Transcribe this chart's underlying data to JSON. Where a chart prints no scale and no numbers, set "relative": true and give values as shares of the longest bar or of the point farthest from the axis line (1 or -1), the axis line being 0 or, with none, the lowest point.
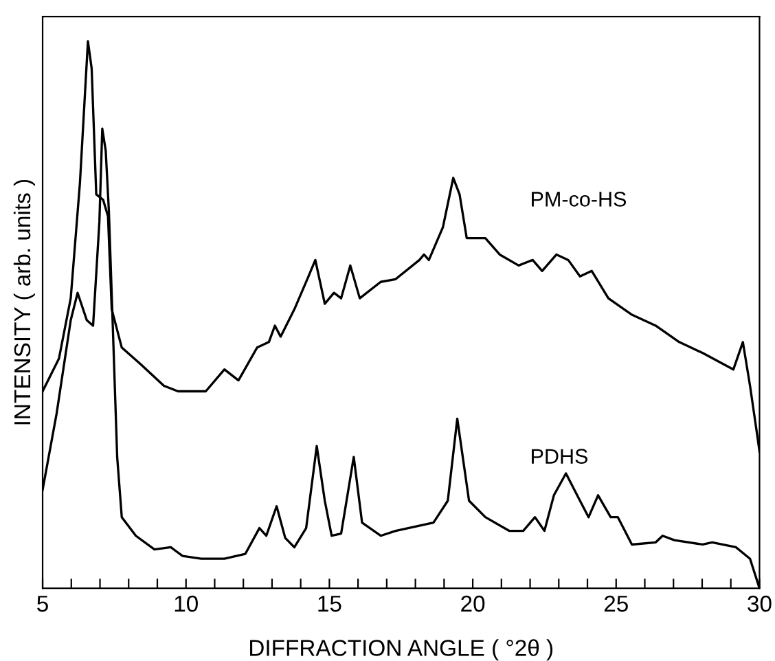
{
  "chart_data": {
    "type": "line",
    "relative": true,
    "xlabel": "DIFFRACTION ANGLE ( °2θ )",
    "ylabel": "INTENSITY ( arb. units )",
    "xlim": [
      5,
      30
    ],
    "xticks": [
      5,
      {
        "value": 6,
        "label": null
      },
      {
        "value": 7,
        "label": null
      },
      {
        "value": 8,
        "label": null
      },
      {
        "value": 9,
        "label": null
      },
      10,
      {
        "value": 11,
        "label": null
      },
      {
        "value": 12,
        "label": null
      },
      {
        "value": 13,
        "label": null
      },
      {
        "value": 14,
        "label": null
      },
      15,
      {
        "value": 16,
        "label": null
      },
      {
        "value": 17,
        "label": null
      },
      {
        "value": 18,
        "label": null
      },
      {
        "value": 19,
        "label": null
      },
      20,
      {
        "value": 21,
        "label": null
      },
      {
        "value": 22,
        "label": null
      },
      {
        "value": 23,
        "label": null
      },
      {
        "value": 24,
        "label": null
      },
      25,
      {
        "value": 26,
        "label": null
      },
      {
        "value": 27,
        "label": null
      },
      {
        "value": 28,
        "label": null
      },
      {
        "value": 29,
        "label": null
      },
      30
    ],
    "tick_labels": "x",
    "grid": false,
    "legend": false,
    "marker": "none",
    "line_style": "solid",
    "series": [
      {
        "name": "PM-co-HS",
        "color": "#000000",
        "x": [
          5.0,
          5.57,
          5.98,
          6.3,
          6.58,
          6.71,
          6.87,
          7.11,
          7.28,
          7.41,
          7.76,
          8.41,
          9.23,
          9.72,
          10.69,
          11.34,
          11.83,
          12.48,
          12.89,
          13.1,
          13.3,
          13.78,
          14.27,
          14.51,
          14.84,
          15.16,
          15.41,
          15.73,
          16.06,
          16.79,
          17.31,
          18.14,
          18.3,
          18.47,
          18.96,
          19.32,
          19.54,
          19.79,
          20.44,
          20.94,
          21.6,
          22.09,
          22.42,
          22.92,
          23.33,
          23.74,
          24.15,
          24.73,
          25.55,
          26.38,
          27.2,
          28.02,
          29.09,
          29.42,
          29.67,
          29.92,
          30.0
        ],
        "values": [
          0.36,
          0.42,
          0.53,
          0.74,
          1.0,
          0.95,
          0.72,
          0.71,
          0.68,
          0.51,
          0.44,
          0.41,
          0.37,
          0.36,
          0.36,
          0.4,
          0.38,
          0.44,
          0.45,
          0.48,
          0.46,
          0.51,
          0.57,
          0.6,
          0.52,
          0.54,
          0.53,
          0.59,
          0.53,
          0.56,
          0.565,
          0.6,
          0.61,
          0.6,
          0.66,
          0.75,
          0.72,
          0.64,
          0.64,
          0.61,
          0.59,
          0.6,
          0.58,
          0.61,
          0.6,
          0.57,
          0.58,
          0.53,
          0.5,
          0.48,
          0.45,
          0.43,
          0.4,
          0.45,
          0.37,
          0.28,
          0.25
        ]
      },
      {
        "name": "PDHS",
        "color": "#000000",
        "x": [
          5.0,
          5.49,
          5.98,
          6.22,
          6.54,
          6.76,
          6.98,
          7.08,
          7.2,
          7.31,
          7.44,
          7.6,
          7.76,
          8.25,
          8.9,
          9.47,
          9.88,
          10.53,
          11.34,
          12.07,
          12.56,
          12.8,
          13.16,
          13.46,
          13.78,
          14.19,
          14.56,
          14.84,
          15.08,
          15.41,
          15.85,
          16.14,
          16.79,
          17.31,
          18.63,
          19.13,
          19.46,
          19.87,
          20.44,
          21.27,
          21.76,
          22.17,
          22.5,
          22.83,
          23.25,
          23.74,
          24.04,
          24.37,
          24.81,
          25.06,
          25.55,
          26.38,
          26.62,
          27.03,
          28.02,
          28.35,
          29.18,
          29.67,
          30.0
        ],
        "values": [
          0.18,
          0.32,
          0.49,
          0.54,
          0.49,
          0.48,
          0.67,
          0.84,
          0.8,
          0.69,
          0.49,
          0.24,
          0.13,
          0.096,
          0.071,
          0.075,
          0.059,
          0.054,
          0.054,
          0.063,
          0.11,
          0.096,
          0.15,
          0.092,
          0.075,
          0.11,
          0.26,
          0.16,
          0.096,
          0.1,
          0.24,
          0.12,
          0.096,
          0.105,
          0.12,
          0.16,
          0.31,
          0.16,
          0.13,
          0.105,
          0.105,
          0.13,
          0.105,
          0.17,
          0.21,
          0.16,
          0.13,
          0.17,
          0.13,
          0.13,
          0.08,
          0.084,
          0.096,
          0.088,
          0.08,
          0.084,
          0.075,
          0.054,
          0.0
        ]
      }
    ]
  }
}
